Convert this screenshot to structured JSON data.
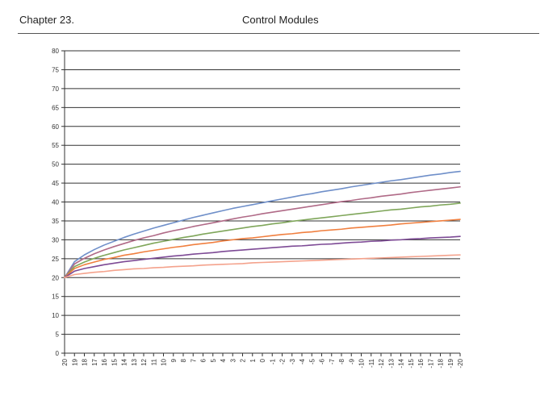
{
  "header": {
    "chapter": "Chapter 23.",
    "title": "Control Modules"
  },
  "chart_data": {
    "type": "line",
    "title": "",
    "xlabel": "",
    "ylabel": "",
    "ylim": [
      0,
      80
    ],
    "yticks": [
      0,
      5,
      10,
      15,
      20,
      25,
      30,
      35,
      40,
      45,
      50,
      55,
      60,
      65,
      70,
      75,
      80
    ],
    "categories": [
      "20",
      "19",
      "18",
      "17",
      "16",
      "15",
      "14",
      "13",
      "12",
      "11",
      "10",
      "9",
      "8",
      "7",
      "6",
      "5",
      "4",
      "3",
      "2",
      "1",
      "0",
      "-1",
      "-2",
      "-3",
      "-4",
      "-5",
      "-6",
      "-7",
      "-8",
      "-9",
      "-10",
      "-11",
      "-12",
      "-13",
      "-14",
      "-15",
      "-16",
      "-17",
      "-18",
      "-19",
      "-20"
    ],
    "grid": "horizontal",
    "legend": "none",
    "series": [
      {
        "color": "#6f8fc9",
        "values": [
          20.0,
          24.2,
          26.0,
          27.4,
          28.6,
          29.6,
          30.6,
          31.5,
          32.3,
          33.1,
          33.8,
          34.5,
          35.2,
          35.9,
          36.5,
          37.1,
          37.7,
          38.3,
          38.8,
          39.3,
          39.8,
          40.3,
          40.8,
          41.3,
          41.8,
          42.2,
          42.7,
          43.1,
          43.5,
          44.0,
          44.4,
          44.8,
          45.2,
          45.6,
          45.9,
          46.3,
          46.7,
          47.1,
          47.4,
          47.8,
          48.1
        ]
      },
      {
        "color": "#b06a87",
        "values": [
          20.0,
          23.6,
          25.1,
          26.3,
          27.3,
          28.2,
          29.0,
          29.8,
          30.5,
          31.1,
          31.8,
          32.4,
          32.9,
          33.5,
          34.0,
          34.5,
          35.0,
          35.5,
          36.0,
          36.4,
          36.9,
          37.3,
          37.7,
          38.1,
          38.5,
          38.9,
          39.3,
          39.7,
          40.1,
          40.4,
          40.8,
          41.1,
          41.5,
          41.8,
          42.1,
          42.5,
          42.8,
          43.1,
          43.4,
          43.7,
          44.0
        ]
      },
      {
        "color": "#7fa65a",
        "values": [
          20.0,
          22.9,
          24.1,
          25.1,
          25.9,
          26.6,
          27.3,
          27.9,
          28.5,
          29.1,
          29.6,
          30.1,
          30.6,
          31.0,
          31.5,
          31.9,
          32.3,
          32.7,
          33.1,
          33.5,
          33.8,
          34.2,
          34.5,
          34.9,
          35.2,
          35.5,
          35.8,
          36.1,
          36.4,
          36.7,
          37.0,
          37.3,
          37.6,
          37.9,
          38.1,
          38.4,
          38.7,
          38.9,
          39.2,
          39.4,
          39.7
        ]
      },
      {
        "color": "#f07f3f",
        "values": [
          20.0,
          22.4,
          23.4,
          24.1,
          24.8,
          25.3,
          25.9,
          26.3,
          26.8,
          27.2,
          27.6,
          28.0,
          28.3,
          28.7,
          29.0,
          29.3,
          29.7,
          30.0,
          30.3,
          30.5,
          30.8,
          31.1,
          31.4,
          31.6,
          31.9,
          32.1,
          32.4,
          32.6,
          32.8,
          33.1,
          33.3,
          33.5,
          33.7,
          33.9,
          34.2,
          34.4,
          34.6,
          34.8,
          35.0,
          35.2,
          35.4
        ]
      },
      {
        "color": "#7d4a95",
        "values": [
          20.0,
          21.7,
          22.4,
          22.9,
          23.4,
          23.8,
          24.2,
          24.5,
          24.8,
          25.1,
          25.4,
          25.7,
          25.9,
          26.2,
          26.4,
          26.6,
          26.9,
          27.1,
          27.3,
          27.5,
          27.7,
          27.9,
          28.1,
          28.3,
          28.4,
          28.6,
          28.8,
          28.9,
          29.1,
          29.3,
          29.4,
          29.6,
          29.7,
          29.9,
          30.0,
          30.2,
          30.3,
          30.5,
          30.6,
          30.7,
          30.9
        ]
      },
      {
        "color": "#f4a28c",
        "values": [
          20.0,
          20.8,
          21.1,
          21.4,
          21.6,
          21.9,
          22.1,
          22.3,
          22.4,
          22.6,
          22.7,
          22.9,
          23.0,
          23.1,
          23.3,
          23.4,
          23.5,
          23.6,
          23.7,
          23.9,
          24.0,
          24.1,
          24.2,
          24.3,
          24.4,
          24.5,
          24.6,
          24.7,
          24.8,
          24.9,
          25.0,
          25.1,
          25.2,
          25.3,
          25.4,
          25.5,
          25.6,
          25.7,
          25.8,
          25.9,
          26.0
        ]
      }
    ]
  }
}
